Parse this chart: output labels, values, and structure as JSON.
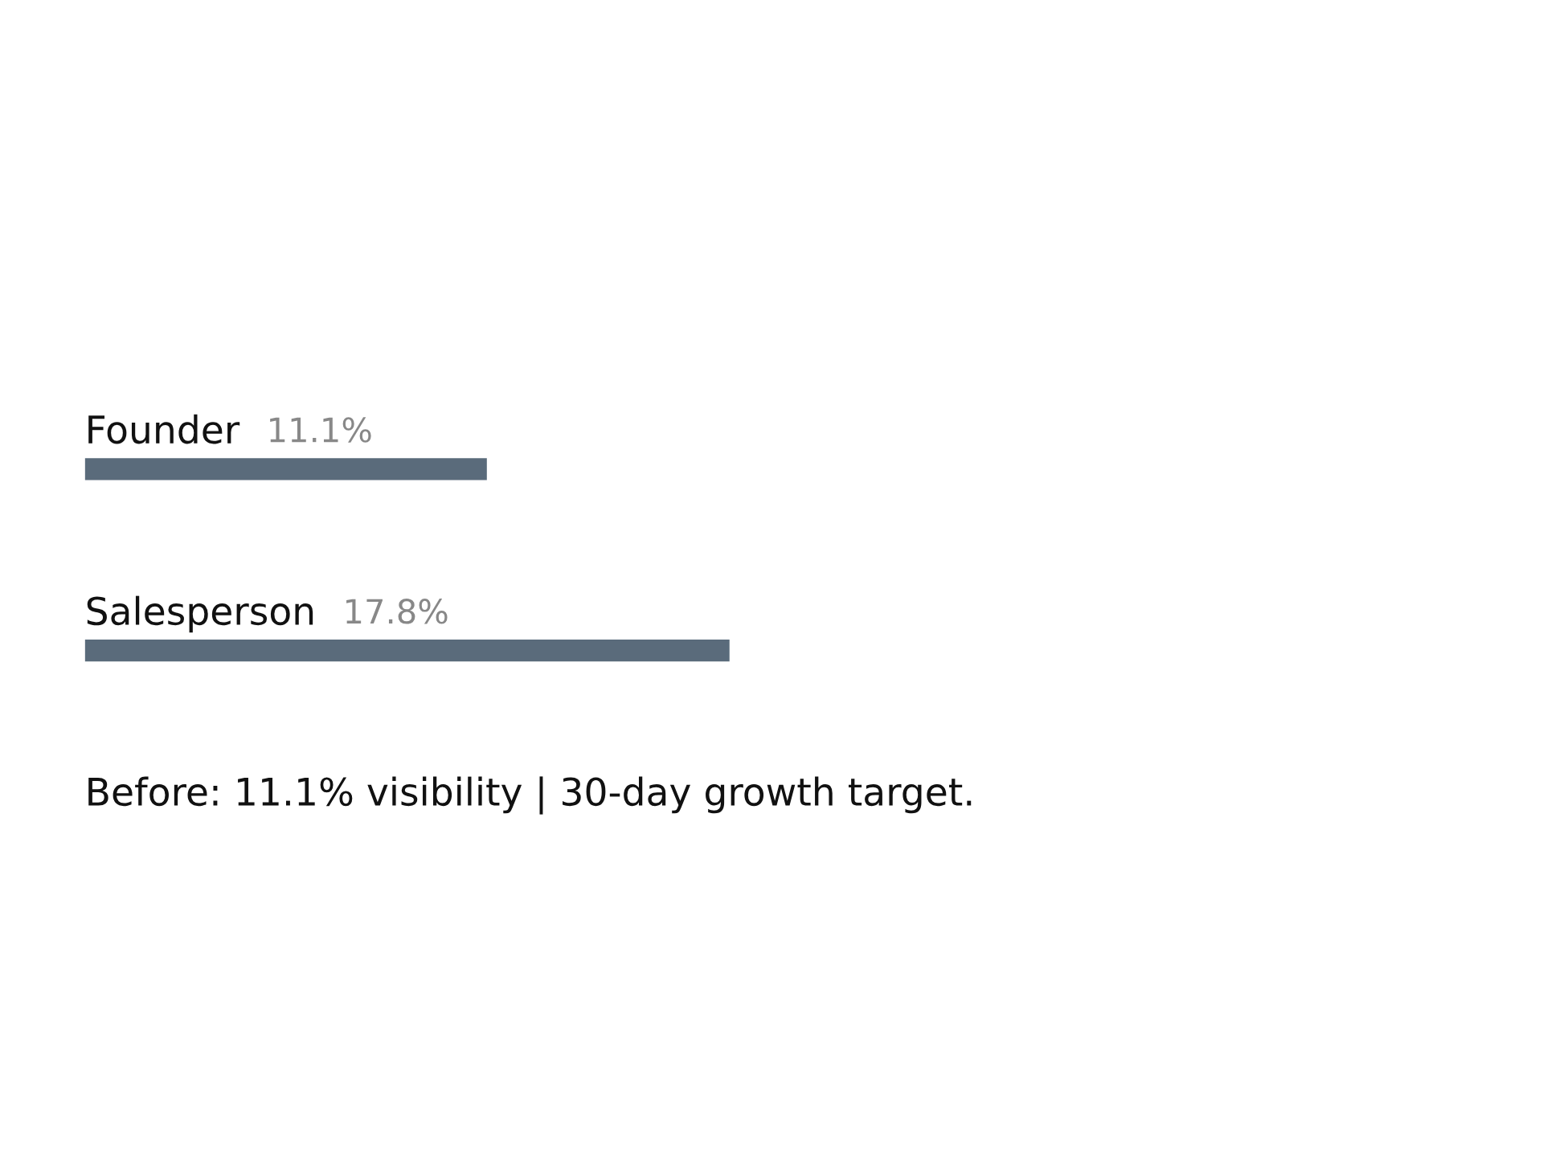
{
  "chart_data": {
    "type": "bar",
    "orientation": "horizontal",
    "categories": [
      "Founder",
      "Salesperson"
    ],
    "values": [
      11.1,
      17.8
    ],
    "value_labels": [
      "11.1%",
      "17.8%"
    ],
    "color": "#5a6b7b",
    "annotations": [
      "Before: 11.1% visibility | 30-day growth target."
    ]
  }
}
